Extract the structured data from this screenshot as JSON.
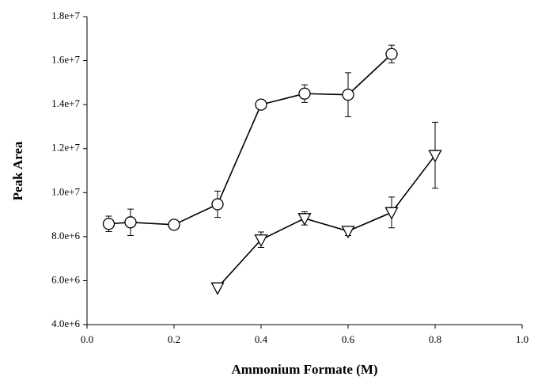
{
  "chart_data": {
    "type": "line",
    "xlabel": "Ammonium Formate (M)",
    "ylabel": "Peak Area",
    "xlim": [
      0,
      1
    ],
    "ylim": [
      4000000,
      18000000
    ],
    "xticks": [
      {
        "value": 0,
        "label": "0.0"
      },
      0.2,
      0.4,
      0.6,
      0.8,
      {
        "value": 1,
        "label": "1.0"
      }
    ],
    "yticks": [
      {
        "value": 4000000,
        "label": "4.0e+6"
      },
      {
        "value": 6000000,
        "label": "6.0e+6"
      },
      {
        "value": 8000000,
        "label": "8.0e+6"
      },
      {
        "value": 10000000,
        "label": "1.0e+7"
      },
      {
        "value": 12000000,
        "label": "1.2e+7"
      },
      {
        "value": 14000000,
        "label": "1.4e+7"
      },
      {
        "value": 16000000,
        "label": "1.6e+7"
      },
      {
        "value": 18000000,
        "label": "1.8e+7"
      }
    ],
    "series": [
      {
        "marker": "circle",
        "color": "#000000",
        "x": [
          0.05,
          0.1,
          0.2,
          0.3,
          0.4,
          0.5,
          0.6,
          0.7
        ],
        "values": [
          8580000,
          8650000,
          8540000,
          9470000,
          14000000,
          14500000,
          14450000,
          16300000
        ],
        "errors": [
          350000,
          600000,
          null,
          600000,
          null,
          400000,
          1000000,
          400000
        ]
      },
      {
        "marker": "triangle-down",
        "color": "#000000",
        "x": [
          0.3,
          0.4,
          0.5,
          0.6,
          0.7,
          0.8
        ],
        "values": [
          5680000,
          7860000,
          8830000,
          8250000,
          9100000,
          11700000
        ],
        "errors": [
          null,
          350000,
          300000,
          200000,
          700000,
          1500000
        ]
      }
    ]
  }
}
